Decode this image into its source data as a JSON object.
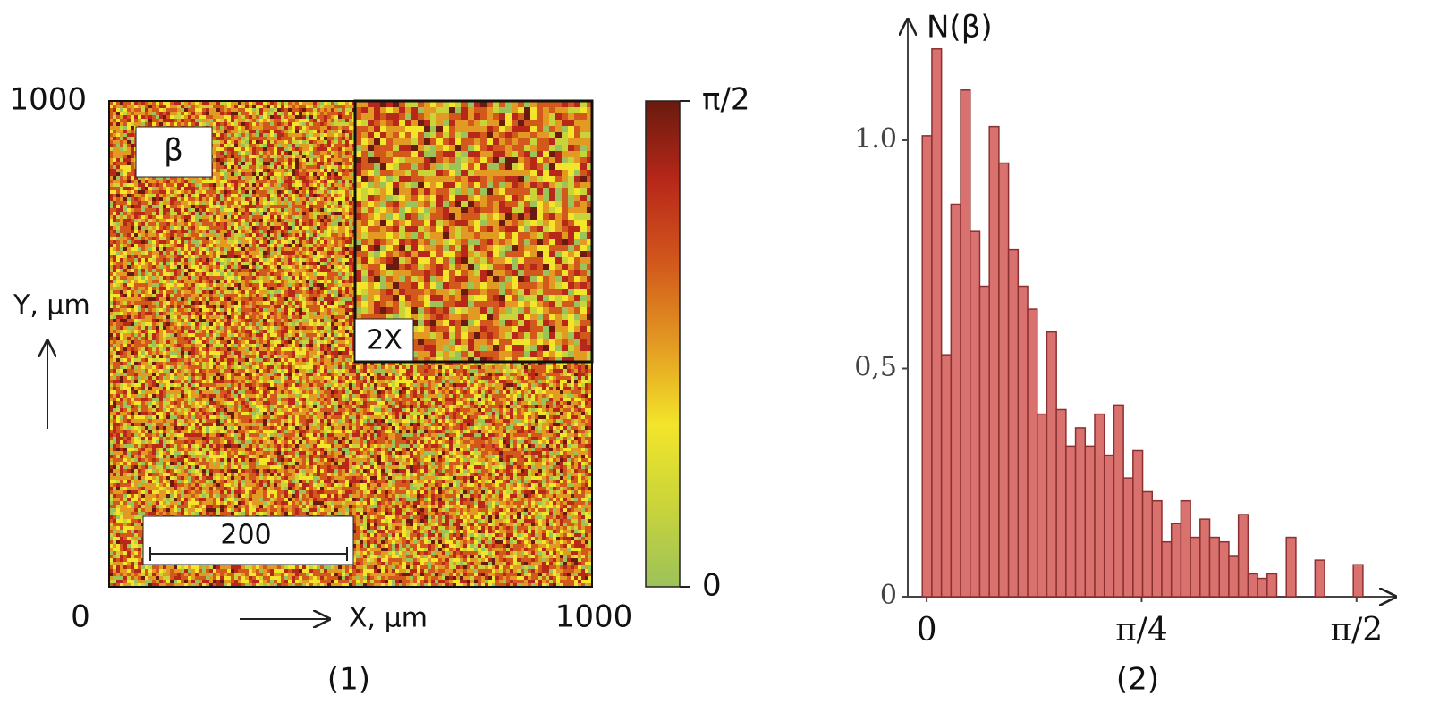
{
  "chart_data": [
    {
      "type": "heatmap",
      "caption": "(1)",
      "xlabel": "X, μm",
      "ylabel": "Y, μm",
      "xlim": [
        0,
        1000
      ],
      "ylim": [
        0,
        1000
      ],
      "xticks": [
        1000
      ],
      "yticks": [
        0,
        1000
      ],
      "panel_label": "β",
      "inset_label": "2X",
      "scale_bar_label": "200",
      "colorbar": {
        "clim": [
          0,
          1.5708
        ],
        "ticks": [
          0,
          {
            "value": 1.5708,
            "label": "π/2"
          }
        ],
        "colors": [
          "#9cc25a",
          "#c9d43a",
          "#f3e52a",
          "#e39a22",
          "#d2581c",
          "#b8281a",
          "#6a1a0e"
        ]
      }
    },
    {
      "type": "histogram",
      "caption": "(2)",
      "ylabel": "N(β)",
      "bins": [
        -0.016,
        0.019,
        0.054,
        0.089,
        0.124,
        0.159,
        0.194,
        0.229,
        0.264,
        0.299,
        0.334,
        0.369,
        0.404,
        0.439,
        0.474,
        0.509,
        0.544,
        0.579,
        0.614,
        0.649,
        0.684,
        0.719,
        0.754,
        0.789,
        0.824,
        0.859,
        0.894,
        0.929,
        0.964,
        0.999,
        1.034,
        1.069,
        1.104,
        1.139,
        1.174,
        1.209,
        1.244,
        1.279,
        1.314,
        1.349,
        1.384,
        1.419,
        1.454,
        1.489,
        1.524,
        1.559,
        1.594
      ],
      "values": [
        1.01,
        1.2,
        0.53,
        0.86,
        1.11,
        0.8,
        0.68,
        1.03,
        0.95,
        0.76,
        0.68,
        0.63,
        0.4,
        0.58,
        0.41,
        0.33,
        0.37,
        0.33,
        0.4,
        0.31,
        0.42,
        0.26,
        0.32,
        0.23,
        0.21,
        0.12,
        0.16,
        0.21,
        0.13,
        0.17,
        0.13,
        0.12,
        0.09,
        0.18,
        0.05,
        0.04,
        0.05,
        0,
        0.13,
        0,
        0,
        0.08,
        0,
        0,
        0,
        0.07
      ],
      "color": "#d9716f",
      "edge_color": "#8b3030",
      "xlim": [
        -0.069,
        1.712
      ],
      "ylim": [
        0,
        1.27
      ],
      "xticks": [
        0,
        {
          "value": 0.7854,
          "label": "π/4"
        },
        {
          "value": 1.5708,
          "label": "π/2"
        }
      ],
      "yticks": [
        0,
        {
          "value": 0.5,
          "label": "0,5"
        },
        {
          "value": 1,
          "label": "1.0"
        }
      ]
    }
  ]
}
